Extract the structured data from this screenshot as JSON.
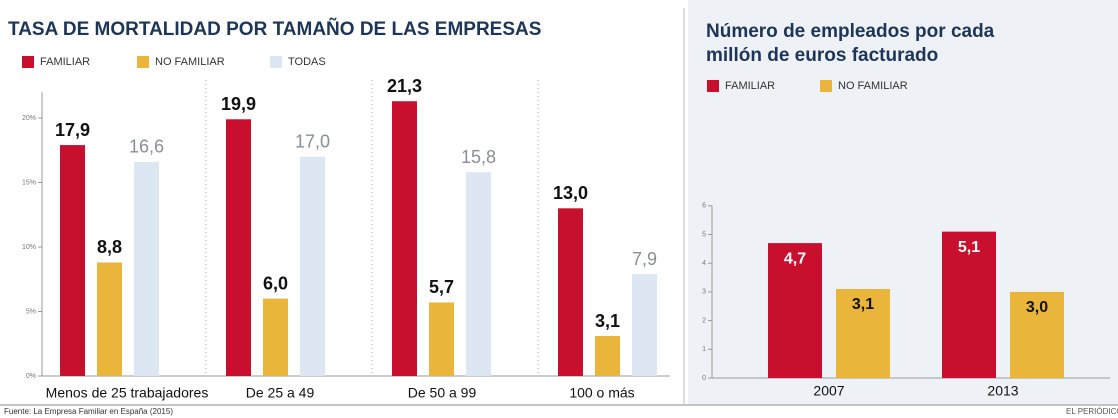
{
  "chart_data": [
    {
      "type": "bar",
      "title": "TASA DE MORTALIDAD POR TAMAÑO DE LAS EMPRESAS",
      "categories": [
        "Menos de 25 trabajadores",
        "De 25 a 49",
        "De 50 a 99",
        "100 o más"
      ],
      "series": [
        {
          "name": "FAMILIAR",
          "color": "#c8102e",
          "values": [
            17.9,
            19.9,
            21.3,
            13.0
          ],
          "value_labels": [
            "17,9",
            "19,9",
            "21,3",
            "13,0"
          ]
        },
        {
          "name": "NO FAMILIAR",
          "color": "#e9b53a",
          "values": [
            8.8,
            6.0,
            5.7,
            3.1
          ],
          "value_labels": [
            "8,8",
            "6,0",
            "5,7",
            "3,1"
          ]
        },
        {
          "name": "TODAS",
          "color": "#dde7f3",
          "values": [
            16.6,
            17.0,
            15.8,
            7.9
          ],
          "value_labels": [
            "16,6",
            "17,0",
            "15,8",
            "7,9"
          ]
        }
      ],
      "ylim": [
        0,
        22
      ],
      "yticks": [
        {
          "value": 0,
          "label": "0%"
        },
        {
          "value": 5,
          "label": "5%"
        },
        {
          "value": 10,
          "label": "10%"
        },
        {
          "value": 15,
          "label": "15%"
        },
        {
          "value": 20,
          "label": "20%"
        }
      ]
    },
    {
      "type": "bar",
      "title": "Número de empleados por cada millón de euros facturado",
      "categories": [
        "2007",
        "2013"
      ],
      "series": [
        {
          "name": "FAMILIAR",
          "color": "#c8102e",
          "values": [
            4.7,
            5.1
          ],
          "value_labels": [
            "4,7",
            "5,1"
          ]
        },
        {
          "name": "NO FAMILIAR",
          "color": "#e9b53a",
          "values": [
            3.1,
            3.0
          ],
          "value_labels": [
            "3,1",
            "3,0"
          ]
        }
      ],
      "ylim": [
        0,
        6
      ],
      "yticks": [
        0,
        1,
        2,
        3,
        4,
        5,
        6
      ]
    }
  ],
  "footer": {
    "source": "Fuente: La Empresa Familiar en España (2015)",
    "credit": "EL PERIÓDICO"
  }
}
